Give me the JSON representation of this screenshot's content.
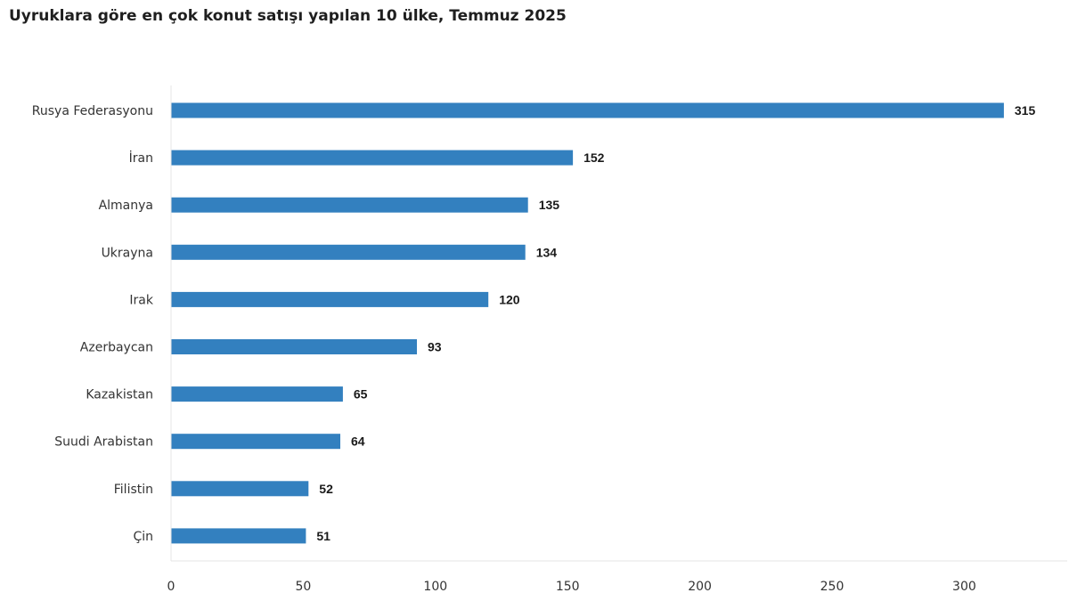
{
  "chart_data": {
    "type": "bar",
    "orientation": "horizontal",
    "title": "Uyruklara göre en çok konut satışı yapılan 10 ülke, Temmuz 2025",
    "categories": [
      "Rusya Federasyonu",
      "İran",
      "Almanya",
      "Ukrayna",
      "Irak",
      "Azerbaycan",
      "Kazakistan",
      "Suudi Arabistan",
      "Filistin",
      "Çin"
    ],
    "values": [
      315,
      152,
      135,
      134,
      120,
      93,
      65,
      64,
      52,
      51
    ],
    "xlim": [
      0,
      340
    ],
    "x_ticks": [
      0,
      50,
      100,
      150,
      200,
      250,
      300
    ],
    "data_labels": true,
    "grid": false,
    "legend": "none",
    "bar_color": "#3380bf"
  }
}
